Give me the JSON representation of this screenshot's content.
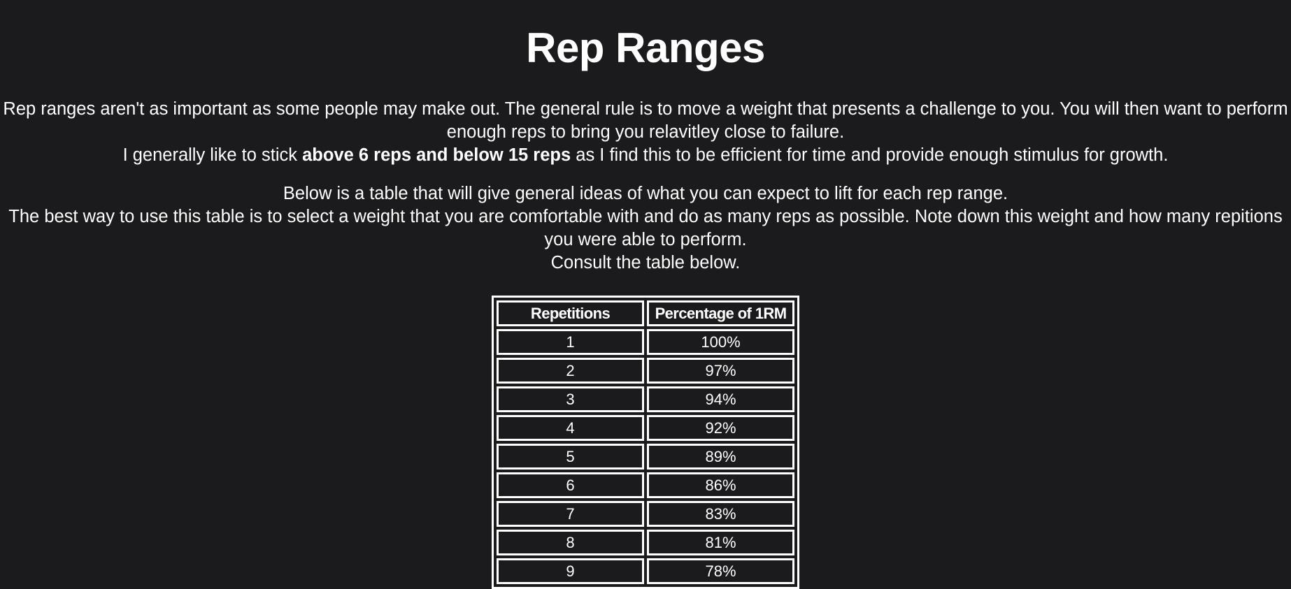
{
  "page": {
    "title": "Rep Ranges",
    "intro": {
      "line1": "Rep ranges aren't as important as some people may make out. The general rule is to move a weight that presents a challenge to you. You will then want to perform enough reps to bring you relavitley close to failure.",
      "line2_before": "I generally like to stick ",
      "line2_bold": "above 6 reps and below 15 reps",
      "line2_after": " as I find this to be efficient for time and provide enough stimulus for growth."
    },
    "table_intro": {
      "line1": "Below is a table that will give general ideas of what you can expect to lift for each rep range.",
      "line2": "The best way to use this table is to select a weight that you are comfortable with and do as many reps as possible. Note down this weight and how many repitions you were able to perform.",
      "line3": "Consult the table below."
    }
  },
  "table": {
    "headers": [
      "Repetitions",
      "Percentage of 1RM"
    ],
    "rows": [
      {
        "reps": "1",
        "pct": "100%"
      },
      {
        "reps": "2",
        "pct": "97%"
      },
      {
        "reps": "3",
        "pct": "94%"
      },
      {
        "reps": "4",
        "pct": "92%"
      },
      {
        "reps": "5",
        "pct": "89%"
      },
      {
        "reps": "6",
        "pct": "86%"
      },
      {
        "reps": "7",
        "pct": "83%"
      },
      {
        "reps": "8",
        "pct": "81%"
      },
      {
        "reps": "9",
        "pct": "78%"
      }
    ]
  },
  "colors": {
    "background": "#1b1b1d",
    "text": "#ffffff",
    "border": "#ffffff"
  }
}
